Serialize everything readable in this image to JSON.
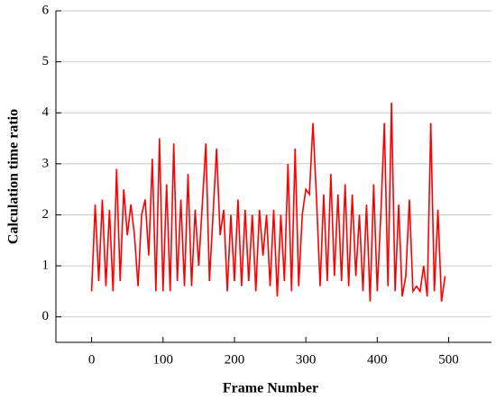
{
  "chart_data": {
    "type": "line",
    "xlabel": "Frame Number",
    "ylabel": "Calculation time ratio",
    "x": [
      0,
      5,
      10,
      15,
      20,
      25,
      30,
      35,
      40,
      45,
      50,
      55,
      60,
      65,
      70,
      75,
      80,
      85,
      90,
      95,
      100,
      105,
      110,
      115,
      120,
      125,
      130,
      135,
      140,
      145,
      150,
      155,
      160,
      165,
      170,
      175,
      180,
      185,
      190,
      195,
      200,
      205,
      210,
      215,
      220,
      225,
      230,
      235,
      240,
      245,
      250,
      255,
      260,
      265,
      270,
      275,
      280,
      285,
      290,
      295,
      300,
      305,
      310,
      315,
      320,
      325,
      330,
      335,
      340,
      345,
      350,
      355,
      360,
      365,
      370,
      375,
      380,
      385,
      390,
      395,
      400,
      405,
      410,
      415,
      420,
      425,
      430,
      435,
      440,
      445,
      450,
      455,
      460,
      465,
      470,
      475,
      480,
      485,
      490,
      495
    ],
    "series": [
      {
        "name": "Calculation time ratio",
        "color": "#ff0000",
        "values": [
          0.5,
          2.2,
          0.7,
          2.3,
          0.6,
          2.1,
          0.5,
          2.9,
          0.7,
          2.5,
          1.6,
          2.2,
          1.6,
          0.6,
          2.0,
          2.3,
          1.2,
          3.1,
          0.5,
          3.5,
          0.5,
          2.6,
          0.5,
          3.4,
          0.7,
          2.3,
          0.6,
          2.8,
          0.6,
          2.1,
          1.0,
          2.2,
          3.4,
          0.7,
          2.0,
          3.3,
          1.6,
          2.1,
          0.5,
          2.0,
          0.7,
          2.3,
          0.6,
          2.1,
          0.7,
          2.0,
          0.5,
          2.1,
          1.2,
          2.0,
          0.6,
          2.1,
          0.4,
          2.0,
          0.7,
          3.0,
          0.5,
          3.3,
          0.6,
          2.0,
          2.5,
          2.4,
          3.8,
          2.3,
          0.6,
          2.4,
          0.7,
          2.8,
          0.8,
          2.4,
          0.7,
          2.6,
          0.6,
          2.4,
          0.8,
          2.0,
          0.5,
          2.2,
          0.3,
          2.6,
          0.5,
          2.0,
          3.8,
          0.6,
          4.2,
          0.5,
          2.2,
          0.4,
          0.8,
          2.3,
          0.5,
          0.6,
          0.5,
          1.0,
          0.4,
          3.8,
          0.5,
          2.1,
          0.3,
          0.8
        ]
      }
    ],
    "xlim": [
      -50,
      560
    ],
    "xticks": [
      0,
      100,
      200,
      300,
      400,
      500
    ],
    "ylim": [
      -0.5,
      6
    ],
    "yticks": [
      0,
      1,
      2,
      3,
      4,
      5,
      6
    ],
    "grid": true
  }
}
